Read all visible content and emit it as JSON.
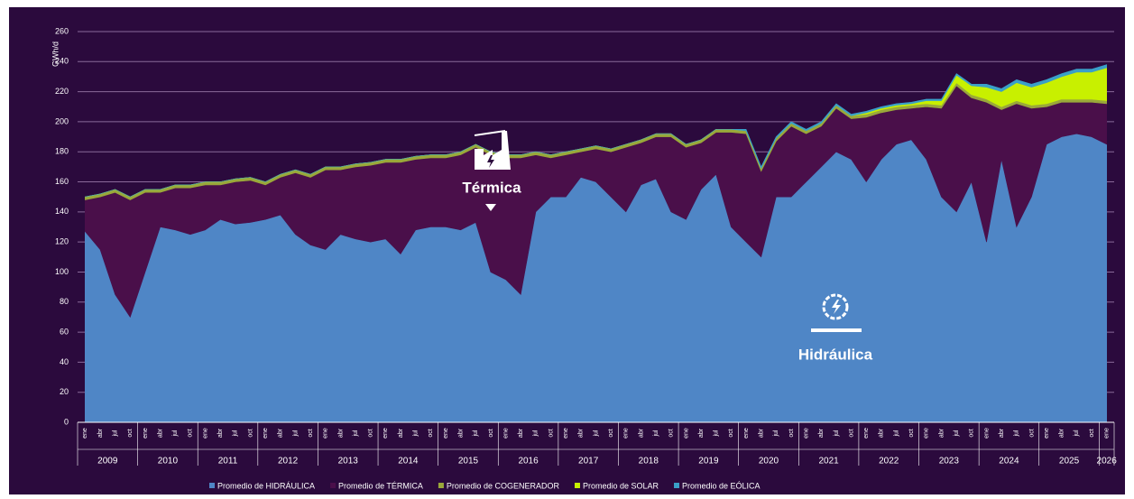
{
  "chart_data": {
    "type": "stacked-area",
    "y_label": "GWh/d",
    "ylim": [
      0,
      260
    ],
    "yticks": [
      0,
      20,
      40,
      60,
      80,
      100,
      120,
      140,
      160,
      180,
      200,
      220,
      240,
      260
    ],
    "grid": true,
    "years": [
      "2009",
      "2010",
      "2011",
      "2012",
      "2013",
      "2014",
      "2015",
      "2016",
      "2017",
      "2018",
      "2019",
      "2020",
      "2021",
      "2022",
      "2023",
      "2024",
      "2025",
      "2026"
    ],
    "categories": [
      "ene",
      "abr",
      "jul",
      "oct",
      "ene",
      "abr",
      "jul",
      "oct",
      "ene",
      "abr",
      "jul",
      "oct",
      "ene",
      "abr",
      "jul",
      "oct",
      "ene",
      "abr",
      "jul",
      "oct",
      "ene",
      "abr",
      "jul",
      "oct",
      "ene",
      "abr",
      "jul",
      "oct",
      "ene",
      "abr",
      "jul",
      "oct",
      "ene",
      "abr",
      "jul",
      "oct",
      "ene",
      "abr",
      "jul",
      "oct",
      "ene",
      "abr",
      "jul",
      "oct",
      "ene",
      "abr",
      "jul",
      "oct",
      "ene",
      "abr",
      "jul",
      "oct",
      "ene",
      "abr",
      "jul",
      "oct",
      "ene",
      "abr",
      "jul",
      "oct",
      "ene",
      "abr",
      "jul",
      "oct",
      "ene",
      "abr",
      "jul",
      "oct",
      "ene"
    ],
    "series": [
      {
        "name": "Promedio de HIDRÁULICA",
        "color": "#4f86c6",
        "values": [
          127,
          115,
          85,
          70,
          100,
          130,
          128,
          125,
          128,
          135,
          132,
          133,
          135,
          138,
          125,
          118,
          115,
          125,
          122,
          120,
          122,
          112,
          128,
          130,
          130,
          128,
          133,
          100,
          95,
          85,
          140,
          150,
          150,
          163,
          160,
          150,
          140,
          158,
          162,
          140,
          135,
          155,
          165,
          130,
          120,
          110,
          150,
          150,
          160,
          170,
          180,
          175,
          160,
          175,
          185,
          188,
          175,
          150,
          140,
          160,
          120,
          175,
          130,
          150,
          185,
          190,
          192,
          190,
          185
        ]
      },
      {
        "name": "Promedio de TÉRMICA",
        "color": "#4a0f4a",
        "values": [
          21,
          35,
          68,
          78,
          53,
          23,
          28,
          31,
          30,
          23,
          28,
          28,
          23,
          25,
          41,
          45,
          53,
          43,
          48,
          51,
          51,
          61,
          47,
          46,
          46,
          50,
          50,
          78,
          81,
          91,
          38,
          26,
          28,
          17,
          22,
          30,
          43,
          28,
          28,
          50,
          48,
          31,
          28,
          63,
          72,
          57,
          37,
          47,
          32,
          27,
          29,
          27,
          43,
          31,
          23,
          21,
          35,
          59,
          84,
          56,
          93,
          33,
          82,
          59,
          25,
          23,
          21,
          23,
          27
        ]
      },
      {
        "name": "Promedio de COGENERADOR",
        "color": "#9aa83a",
        "values": [
          2,
          2,
          2,
          2,
          2,
          2,
          2,
          2,
          2,
          2,
          2,
          2,
          2,
          2,
          2,
          2,
          2,
          2,
          2,
          2,
          2,
          2,
          2,
          2,
          2,
          2,
          2,
          2,
          2,
          2,
          2,
          2,
          2,
          2,
          2,
          2,
          2,
          2,
          2,
          2,
          2,
          2,
          2,
          2,
          2,
          2,
          2,
          2,
          2,
          2,
          2,
          2,
          2,
          2,
          2,
          2,
          2,
          2,
          2,
          2,
          2,
          2,
          2,
          2,
          2,
          2,
          2,
          2,
          2
        ]
      },
      {
        "name": "Promedio de SOLAR",
        "color": "#c8f000",
        "values": [
          0,
          0,
          0,
          0,
          0,
          0,
          0,
          0,
          0,
          0,
          0,
          0,
          0,
          0,
          0,
          0,
          0,
          0,
          0,
          0,
          0,
          0,
          0,
          0,
          0,
          0,
          0,
          0,
          0,
          0,
          0,
          0,
          0,
          0,
          0,
          0,
          0,
          0,
          0,
          0,
          0,
          0,
          0,
          0,
          0,
          0,
          0,
          0,
          0,
          0,
          0,
          0,
          1,
          1,
          1,
          1,
          2,
          3,
          5,
          6,
          8,
          10,
          12,
          12,
          14,
          15,
          18,
          18,
          22
        ]
      },
      {
        "name": "Promedio de EÓLICA",
        "color": "#3aa0c8",
        "values": [
          0,
          0,
          0,
          0,
          0,
          0,
          0,
          0,
          0,
          0,
          0,
          0,
          0,
          0,
          0,
          0,
          0,
          0,
          0,
          0,
          0,
          0,
          0,
          0,
          0,
          0,
          0,
          0,
          0,
          0,
          0,
          0,
          0,
          0,
          0,
          0,
          0,
          0,
          0,
          0,
          0,
          0,
          0,
          0,
          1,
          1,
          1,
          1,
          1,
          1,
          1,
          1,
          1,
          1,
          1,
          1,
          1,
          1,
          1,
          1,
          2,
          2,
          2,
          2,
          2,
          2,
          2,
          2,
          2
        ]
      }
    ],
    "annotations": [
      "Térmica",
      "Hidráulica"
    ]
  }
}
